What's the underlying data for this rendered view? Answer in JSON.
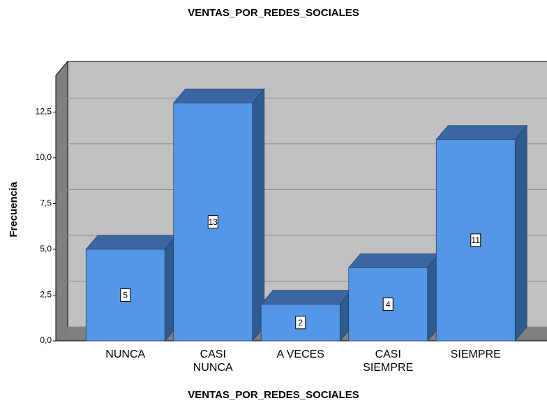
{
  "chart_data": {
    "type": "bar3d",
    "title": "VENTAS_POR_REDES_SOCIALES",
    "x_label": "VENTAS_POR_REDES_SOCIALES",
    "y_label": "Frecuencia",
    "categories": [
      "NUNCA",
      "CASI NUNCA",
      "A VECES",
      "CASI SIEMPRE",
      "SIEMPRE"
    ],
    "values": [
      5,
      13,
      2,
      4,
      11
    ],
    "color": "#5597e7",
    "ylim": [
      0,
      14.5
    ],
    "yticks": [
      {
        "value": 0,
        "label": "0,0"
      },
      {
        "value": 2.5,
        "label": "2,5"
      },
      {
        "value": 5,
        "label": "5,0"
      },
      {
        "value": 7.5,
        "label": "7,5"
      },
      {
        "value": 10,
        "label": "10,0"
      },
      {
        "value": 12.5,
        "label": "12,5"
      }
    ],
    "grid": true
  }
}
